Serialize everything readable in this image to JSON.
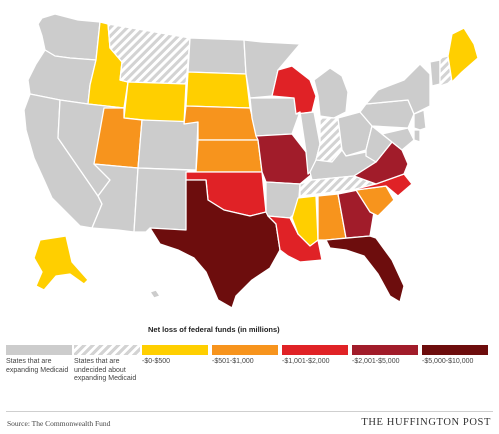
{
  "colors": {
    "background": "#ffffff",
    "expanding": "#cccccc",
    "undecided_base": "#ffffff",
    "undecided_stripe": "#d3d3d3",
    "tier1": "#ffcf00",
    "tier2": "#f7941d",
    "tier3": "#e02226",
    "tier4": "#a11c2a",
    "tier5": "#6d0d0d",
    "border": "#ffffff"
  },
  "legend": {
    "title": "Net loss of federal funds (in millions)",
    "items": [
      {
        "key": "expanding",
        "label": "States that are expanding Medicaid"
      },
      {
        "key": "undecided",
        "label": "States that are undecided about expanding Medicaid"
      },
      {
        "key": "tier1",
        "label": "-$0-$500"
      },
      {
        "key": "tier2",
        "label": "-$501-$1,000"
      },
      {
        "key": "tier3",
        "label": "-$1,001-$2,000"
      },
      {
        "key": "tier4",
        "label": "-$2,001-$5,000"
      },
      {
        "key": "tier5",
        "label": "-$5,000-$10,000"
      }
    ]
  },
  "regions": [
    {
      "id": "washington",
      "category": "expanding"
    },
    {
      "id": "oregon",
      "category": "expanding"
    },
    {
      "id": "california",
      "category": "expanding"
    },
    {
      "id": "nevada",
      "category": "expanding"
    },
    {
      "id": "arizona",
      "category": "expanding"
    },
    {
      "id": "new-mexico",
      "category": "expanding"
    },
    {
      "id": "colorado",
      "category": "expanding"
    },
    {
      "id": "north-dakota",
      "category": "expanding"
    },
    {
      "id": "minnesota",
      "category": "expanding"
    },
    {
      "id": "iowa",
      "category": "expanding"
    },
    {
      "id": "illinois",
      "category": "expanding"
    },
    {
      "id": "michigan",
      "category": "expanding"
    },
    {
      "id": "ohio",
      "category": "expanding"
    },
    {
      "id": "kentucky",
      "category": "expanding"
    },
    {
      "id": "arkansas",
      "category": "expanding"
    },
    {
      "id": "west-virginia",
      "category": "expanding"
    },
    {
      "id": "new-york",
      "category": "expanding"
    },
    {
      "id": "pennsylvania",
      "category": "expanding"
    },
    {
      "id": "vermont",
      "category": "expanding"
    },
    {
      "id": "new-jersey",
      "category": "expanding"
    },
    {
      "id": "maryland",
      "category": "expanding"
    },
    {
      "id": "delaware",
      "category": "expanding"
    },
    {
      "id": "hawaii",
      "category": "expanding"
    },
    {
      "id": "montana",
      "category": "undecided"
    },
    {
      "id": "indiana",
      "category": "undecided"
    },
    {
      "id": "tennessee",
      "category": "undecided"
    },
    {
      "id": "new-hampshire",
      "category": "undecided"
    },
    {
      "id": "idaho",
      "category": "tier1"
    },
    {
      "id": "wyoming",
      "category": "tier1"
    },
    {
      "id": "south-dakota",
      "category": "tier1"
    },
    {
      "id": "mississippi",
      "category": "tier1"
    },
    {
      "id": "maine",
      "category": "tier1"
    },
    {
      "id": "alaska",
      "category": "tier1"
    },
    {
      "id": "utah",
      "category": "tier2"
    },
    {
      "id": "nebraska",
      "category": "tier2"
    },
    {
      "id": "kansas",
      "category": "tier2"
    },
    {
      "id": "alabama",
      "category": "tier2"
    },
    {
      "id": "south-carolina",
      "category": "tier2"
    },
    {
      "id": "oklahoma",
      "category": "tier3"
    },
    {
      "id": "louisiana",
      "category": "tier3"
    },
    {
      "id": "wisconsin",
      "category": "tier3"
    },
    {
      "id": "north-carolina",
      "category": "tier3"
    },
    {
      "id": "missouri",
      "category": "tier4"
    },
    {
      "id": "georgia",
      "category": "tier4"
    },
    {
      "id": "virginia",
      "category": "tier4"
    },
    {
      "id": "texas",
      "category": "tier5"
    },
    {
      "id": "florida",
      "category": "tier5"
    }
  ],
  "footer": {
    "source": "Source: The Commonwealth Fund",
    "brand": "THE HUFFINGTON POST"
  }
}
